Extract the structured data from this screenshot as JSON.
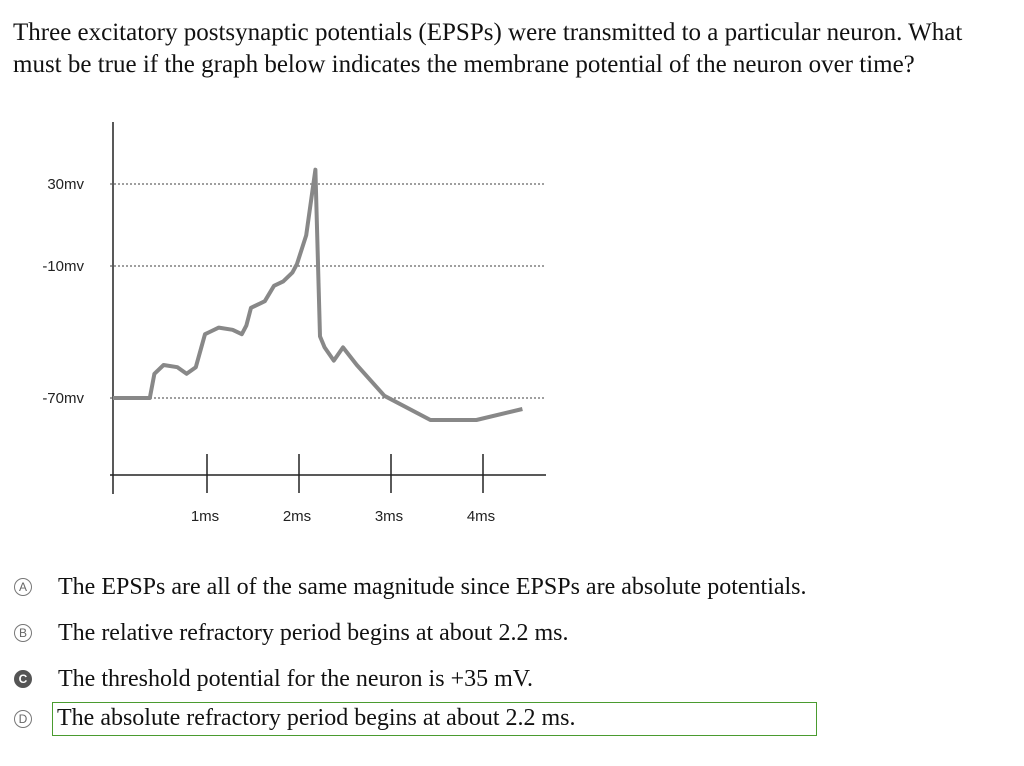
{
  "question": "Three excitatory postsynaptic potentials (EPSPs) were transmitted to a particular neuron. What must be true if the graph below indicates the membrane potential of the neuron over time?",
  "chart_data": {
    "type": "line",
    "title": "",
    "xlabel": "",
    "ylabel": "",
    "x_ticks": [
      "1ms",
      "2ms",
      "3ms",
      "4ms"
    ],
    "y_ticks": [
      "30mv",
      "-10mv",
      "-70mv"
    ],
    "gridlines": "dotted horizontal at 30mv, -10mv, -70mv",
    "series": [
      {
        "name": "membrane potential",
        "x": [
          0.0,
          0.4,
          0.45,
          0.55,
          0.7,
          0.8,
          0.9,
          1.0,
          1.05,
          1.15,
          1.3,
          1.4,
          1.45,
          1.5,
          1.6,
          1.65,
          1.75,
          1.85,
          1.95,
          2.0,
          2.1,
          2.2,
          2.25,
          2.3,
          2.4,
          2.5,
          2.65,
          2.95,
          3.45,
          3.95,
          4.45
        ],
        "y": [
          -70,
          -70,
          -59,
          -55,
          -56,
          -59,
          -56,
          -41,
          -40,
          -38,
          -39,
          -41,
          -37,
          -29,
          -27,
          -26,
          -19,
          -17,
          -13,
          -9,
          5,
          37,
          -42,
          -47,
          -53,
          -47,
          -55,
          -69,
          -80,
          -80,
          -75
        ]
      }
    ]
  },
  "choices": [
    {
      "letter": "A",
      "text": "The EPSPs are all of the same magnitude since EPSPs are absolute potentials.",
      "selected": false,
      "boxed": false
    },
    {
      "letter": "B",
      "text": "The relative refractory period begins at about 2.2 ms.",
      "selected": false,
      "boxed": false
    },
    {
      "letter": "C",
      "text": "The threshold potential for the neuron is +35 mV.",
      "selected": true,
      "boxed": false
    },
    {
      "letter": "D",
      "text": "The absolute refractory period begins at about 2.2 ms.",
      "selected": false,
      "boxed": true
    }
  ],
  "colors": {
    "line": "#888888",
    "axis": "#222222",
    "grid": "#666666",
    "box": "#4a9b2f",
    "selected": "#555555"
  }
}
